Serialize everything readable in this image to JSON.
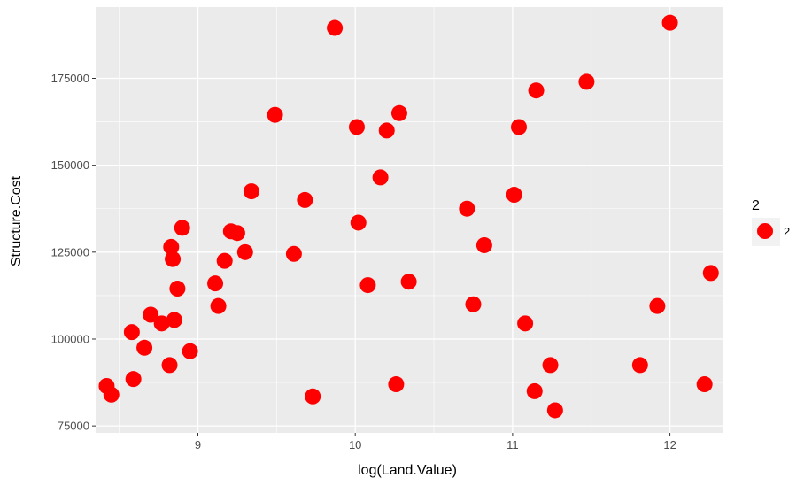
{
  "chart_data": {
    "type": "scatter",
    "xlabel": "log(Land.Value)",
    "ylabel": "Structure.Cost",
    "xlim": [
      8.35,
      12.34
    ],
    "ylim": [
      73000,
      195500
    ],
    "x_ticks": [
      9,
      10,
      11,
      12
    ],
    "x_tick_labels": [
      "9",
      "10",
      "11",
      "12"
    ],
    "y_ticks": [
      75000,
      100000,
      125000,
      150000,
      175000
    ],
    "y_tick_labels": [
      "75000",
      "100000",
      "125000",
      "150000",
      "175000"
    ],
    "grid": true,
    "legend": {
      "title": "2",
      "placement": "right",
      "entries": [
        {
          "label": "2",
          "color": "#ff0000"
        }
      ]
    },
    "colors": {
      "panel_bg": "#ebebeb",
      "grid": "#ffffff",
      "point": "#ff0000"
    },
    "series": [
      {
        "name": "2",
        "points": [
          {
            "x": 8.42,
            "y": 86500
          },
          {
            "x": 8.45,
            "y": 84000
          },
          {
            "x": 8.58,
            "y": 102000
          },
          {
            "x": 8.59,
            "y": 88500
          },
          {
            "x": 8.66,
            "y": 97500
          },
          {
            "x": 8.7,
            "y": 107000
          },
          {
            "x": 8.77,
            "y": 104500
          },
          {
            "x": 8.82,
            "y": 92500
          },
          {
            "x": 8.83,
            "y": 126500
          },
          {
            "x": 8.84,
            "y": 123000
          },
          {
            "x": 8.85,
            "y": 105500
          },
          {
            "x": 8.87,
            "y": 114500
          },
          {
            "x": 8.9,
            "y": 132000
          },
          {
            "x": 8.95,
            "y": 96500
          },
          {
            "x": 9.11,
            "y": 116000
          },
          {
            "x": 9.13,
            "y": 109500
          },
          {
            "x": 9.17,
            "y": 122500
          },
          {
            "x": 9.21,
            "y": 131000
          },
          {
            "x": 9.25,
            "y": 130500
          },
          {
            "x": 9.3,
            "y": 125000
          },
          {
            "x": 9.34,
            "y": 142500
          },
          {
            "x": 9.49,
            "y": 164500
          },
          {
            "x": 9.61,
            "y": 124500
          },
          {
            "x": 9.68,
            "y": 140000
          },
          {
            "x": 9.73,
            "y": 83500
          },
          {
            "x": 9.87,
            "y": 189500
          },
          {
            "x": 10.01,
            "y": 161000
          },
          {
            "x": 10.02,
            "y": 133500
          },
          {
            "x": 10.08,
            "y": 115500
          },
          {
            "x": 10.16,
            "y": 146500
          },
          {
            "x": 10.2,
            "y": 160000
          },
          {
            "x": 10.26,
            "y": 87000
          },
          {
            "x": 10.28,
            "y": 165000
          },
          {
            "x": 10.34,
            "y": 116500
          },
          {
            "x": 10.71,
            "y": 137500
          },
          {
            "x": 10.75,
            "y": 110000
          },
          {
            "x": 10.82,
            "y": 127000
          },
          {
            "x": 11.01,
            "y": 141500
          },
          {
            "x": 11.04,
            "y": 161000
          },
          {
            "x": 11.08,
            "y": 104500
          },
          {
            "x": 11.14,
            "y": 85000
          },
          {
            "x": 11.15,
            "y": 171500
          },
          {
            "x": 11.24,
            "y": 92500
          },
          {
            "x": 11.27,
            "y": 79500
          },
          {
            "x": 11.47,
            "y": 174000
          },
          {
            "x": 11.81,
            "y": 92500
          },
          {
            "x": 11.92,
            "y": 109500
          },
          {
            "x": 12.0,
            "y": 191000
          },
          {
            "x": 12.22,
            "y": 87000
          },
          {
            "x": 12.26,
            "y": 119000
          }
        ]
      }
    ]
  }
}
